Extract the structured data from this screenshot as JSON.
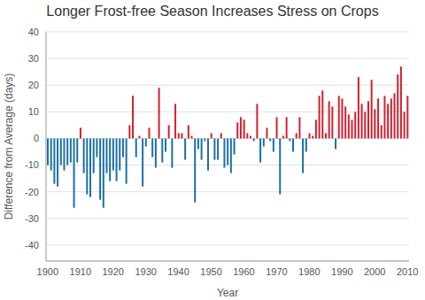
{
  "chart_data": {
    "type": "bar",
    "title": "Longer Frost-free Season Increases Stress on Crops",
    "x_label": "Year",
    "y_label": "Difference from Average (days)",
    "x": [
      1900,
      1901,
      1902,
      1903,
      1904,
      1905,
      1906,
      1907,
      1908,
      1909,
      1910,
      1911,
      1912,
      1913,
      1914,
      1915,
      1916,
      1917,
      1918,
      1919,
      1920,
      1921,
      1922,
      1923,
      1924,
      1925,
      1926,
      1927,
      1928,
      1929,
      1930,
      1931,
      1932,
      1933,
      1934,
      1935,
      1936,
      1937,
      1938,
      1939,
      1940,
      1941,
      1942,
      1943,
      1944,
      1945,
      1946,
      1947,
      1948,
      1949,
      1950,
      1951,
      1952,
      1953,
      1954,
      1955,
      1956,
      1957,
      1958,
      1959,
      1960,
      1961,
      1962,
      1963,
      1964,
      1965,
      1966,
      1967,
      1968,
      1969,
      1970,
      1971,
      1972,
      1973,
      1974,
      1975,
      1976,
      1977,
      1978,
      1979,
      1980,
      1981,
      1982,
      1983,
      1984,
      1985,
      1986,
      1987,
      1988,
      1989,
      1990,
      1991,
      1992,
      1993,
      1994,
      1995,
      1996,
      1997,
      1998,
      1999,
      2000,
      2001,
      2002,
      2003,
      2004,
      2005,
      2006,
      2007,
      2008,
      2009,
      2010
    ],
    "values": [
      -10,
      -12,
      -17,
      -18,
      -10,
      -12,
      -10,
      -9,
      -26,
      -9,
      4,
      -13,
      -21,
      -22,
      -13,
      -7,
      -23,
      -26,
      -13,
      -16,
      -12,
      -16,
      -12,
      -7,
      -17,
      5,
      16,
      -7,
      1,
      -18,
      -3,
      4,
      -7,
      -11,
      19,
      -9,
      -5,
      5,
      -11,
      13,
      2,
      2,
      -8,
      5,
      1,
      -24,
      -4,
      -8,
      -1,
      -12,
      2,
      -8,
      -8,
      2,
      -11,
      -10,
      -13,
      -6,
      6,
      8,
      7,
      2,
      1,
      -1,
      13,
      -9,
      -3,
      4,
      -1,
      -5,
      8,
      -21,
      1,
      8,
      -1,
      -5,
      2,
      8,
      -13,
      -5,
      2,
      1,
      7,
      16,
      18,
      2,
      14,
      12,
      -4,
      16,
      15,
      12,
      9,
      7,
      10,
      23,
      13,
      10,
      14,
      22,
      11,
      15,
      5,
      16,
      13,
      15,
      17,
      24,
      27,
      10,
      16
    ],
    "colors": [
      "#1b6fa8",
      "#1b6fa8",
      "#1b6fa8",
      "#1b6fa8",
      "#1b6fa8",
      "#1b6fa8",
      "#1b6fa8",
      "#1b6fa8",
      "#1b6fa8",
      "#1b6fa8",
      "#d3202f",
      "#1b6fa8",
      "#1b6fa8",
      "#1b6fa8",
      "#1b6fa8",
      "#1b6fa8",
      "#1b6fa8",
      "#1b6fa8",
      "#1b6fa8",
      "#1b6fa8",
      "#1b6fa8",
      "#1b6fa8",
      "#1b6fa8",
      "#1b6fa8",
      "#1b6fa8",
      "#d3202f",
      "#d3202f",
      "#1b6fa8",
      "#d3202f",
      "#1b6fa8",
      "#1b6fa8",
      "#d3202f",
      "#1b6fa8",
      "#1b6fa8",
      "#d3202f",
      "#1b6fa8",
      "#1b6fa8",
      "#d3202f",
      "#1b6fa8",
      "#d3202f",
      "#d3202f",
      "#d3202f",
      "#1b6fa8",
      "#d3202f",
      "#d3202f",
      "#1b6fa8",
      "#1b6fa8",
      "#1b6fa8",
      "#1b6fa8",
      "#1b6fa8",
      "#d3202f",
      "#1b6fa8",
      "#1b6fa8",
      "#d3202f",
      "#1b6fa8",
      "#1b6fa8",
      "#1b6fa8",
      "#1b6fa8",
      "#d3202f",
      "#d3202f",
      "#d3202f",
      "#d3202f",
      "#d3202f",
      "#1b6fa8",
      "#d3202f",
      "#1b6fa8",
      "#1b6fa8",
      "#d3202f",
      "#1b6fa8",
      "#1b6fa8",
      "#d3202f",
      "#1b6fa8",
      "#d3202f",
      "#d3202f",
      "#1b6fa8",
      "#1b6fa8",
      "#d3202f",
      "#d3202f",
      "#1b6fa8",
      "#1b6fa8",
      "#d3202f",
      "#d3202f",
      "#d3202f",
      "#d3202f",
      "#d3202f",
      "#d3202f",
      "#d3202f",
      "#d3202f",
      "#1b6fa8",
      "#d3202f",
      "#d3202f",
      "#d3202f",
      "#d3202f",
      "#d3202f",
      "#d3202f",
      "#d3202f",
      "#d3202f",
      "#d3202f",
      "#d3202f",
      "#d3202f",
      "#d3202f",
      "#d3202f",
      "#d3202f",
      "#d3202f",
      "#d3202f",
      "#d3202f",
      "#d3202f",
      "#d3202f",
      "#d3202f",
      "#d3202f",
      "#d3202f"
    ],
    "xlim": [
      1899.5,
      2010.5
    ],
    "xticks": [
      1900,
      1910,
      1920,
      1930,
      1940,
      1950,
      1960,
      1970,
      1980,
      1990,
      2000,
      2010
    ],
    "ylim": [
      -46,
      40
    ],
    "yticks": [
      -40,
      -30,
      -20,
      -10,
      0,
      10,
      20,
      30,
      40
    ],
    "grid": true
  }
}
